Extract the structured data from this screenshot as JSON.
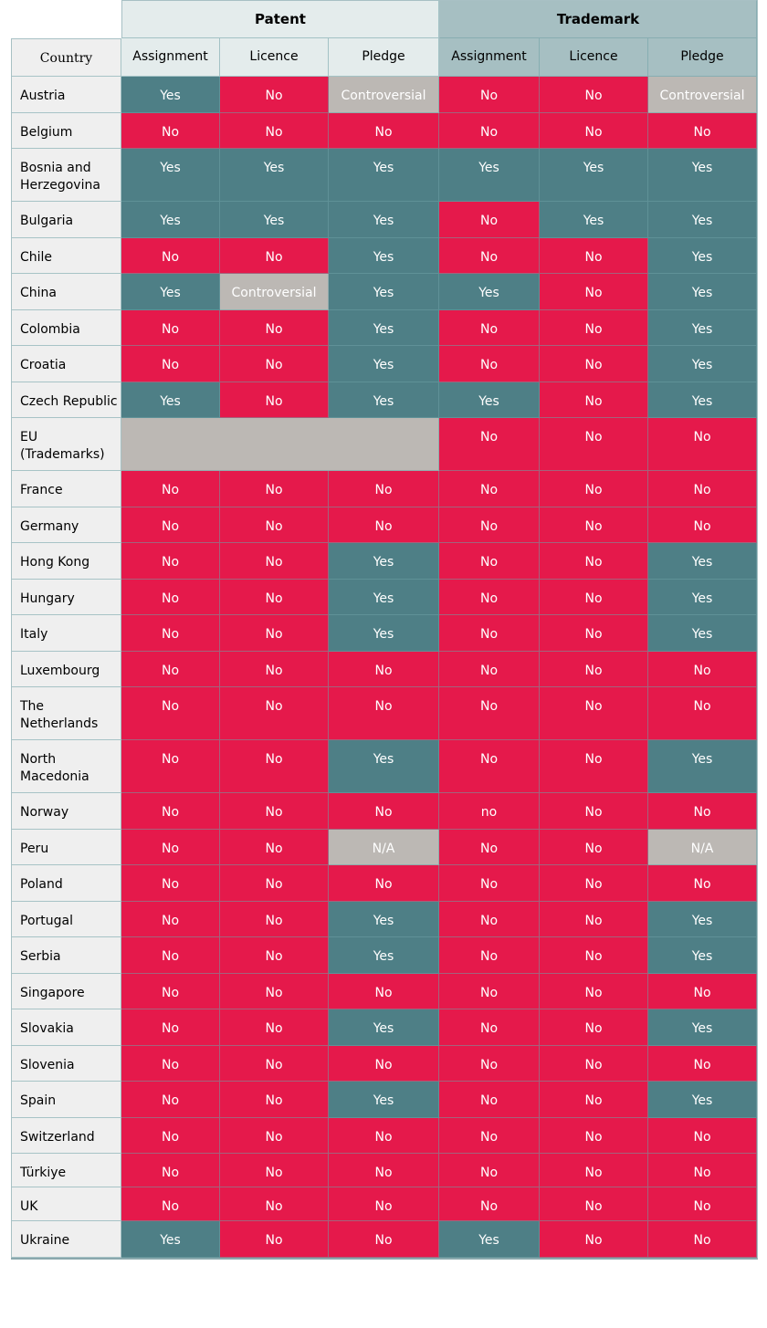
{
  "headers": {
    "patent": "Patent",
    "trademark": "Trademark",
    "country": "Country",
    "columns": [
      "Assignment",
      "Licence",
      "Pledge",
      "Assignment",
      "Licence",
      "Pledge"
    ]
  },
  "colors": {
    "yes": "#4e7f86",
    "no": "#e5194b",
    "grey": "#bcb8b4"
  },
  "rows": [
    {
      "country": "Austria",
      "values": [
        "Yes",
        "No",
        "Controversial",
        "No",
        "No",
        "Controversial"
      ]
    },
    {
      "country": "Belgium",
      "values": [
        "No",
        "No",
        "No",
        "No",
        "No",
        "No"
      ]
    },
    {
      "country": "Bosnia and Herzegovina",
      "values": [
        "Yes",
        "Yes",
        "Yes",
        "Yes",
        "Yes",
        "Yes"
      ]
    },
    {
      "country": "Bulgaria",
      "values": [
        "Yes",
        "Yes",
        "Yes",
        "No",
        "Yes",
        "Yes"
      ]
    },
    {
      "country": "Chile",
      "values": [
        "No",
        "No",
        "Yes",
        "No",
        "No",
        "Yes"
      ]
    },
    {
      "country": "China",
      "values": [
        "Yes",
        "Controversial",
        "Yes",
        "Yes",
        "No",
        "Yes"
      ]
    },
    {
      "country": "Colombia",
      "values": [
        "No",
        "No",
        "Yes",
        "No",
        "No",
        "Yes"
      ]
    },
    {
      "country": "Croatia",
      "values": [
        "No",
        "No",
        "Yes",
        "No",
        "No",
        "Yes"
      ]
    },
    {
      "country": "Czech Republic",
      "values": [
        "Yes",
        "No",
        "Yes",
        "Yes",
        "No",
        "Yes"
      ]
    },
    {
      "country": "EU (Trademarks)",
      "patent_na": true,
      "values": [
        "",
        "",
        "",
        "No",
        "No",
        "No"
      ]
    },
    {
      "country": "France",
      "values": [
        "No",
        "No",
        "No",
        "No",
        "No",
        "No"
      ]
    },
    {
      "country": "Germany",
      "values": [
        "No",
        "No",
        "No",
        "No",
        "No",
        "No"
      ]
    },
    {
      "country": "Hong Kong",
      "values": [
        "No",
        "No",
        "Yes",
        "No",
        "No",
        "Yes"
      ]
    },
    {
      "country": "Hungary",
      "values": [
        "No",
        "No",
        "Yes",
        "No",
        "No",
        "Yes"
      ]
    },
    {
      "country": "Italy",
      "values": [
        "No",
        "No",
        "Yes",
        "No",
        "No",
        "Yes"
      ]
    },
    {
      "country": "Luxembourg",
      "values": [
        "No",
        "No",
        "No",
        "No",
        "No",
        "No"
      ]
    },
    {
      "country": "The Netherlands",
      "values": [
        "No",
        "No",
        "No",
        "No",
        "No",
        "No"
      ]
    },
    {
      "country": "North Macedonia",
      "values": [
        "No",
        "No",
        "Yes",
        "No",
        "No",
        "Yes"
      ]
    },
    {
      "country": "Norway",
      "values": [
        "No",
        "No",
        "No",
        "no",
        "No",
        "No"
      ]
    },
    {
      "country": "Peru",
      "values": [
        "No",
        "No",
        "N/A",
        "No",
        "No",
        "N/A"
      ]
    },
    {
      "country": "Poland",
      "values": [
        "No",
        "No",
        "No",
        "No",
        "No",
        "No"
      ]
    },
    {
      "country": "Portugal",
      "values": [
        "No",
        "No",
        "Yes",
        "No",
        "No",
        "Yes"
      ]
    },
    {
      "country": "Serbia",
      "values": [
        "No",
        "No",
        "Yes",
        "No",
        "No",
        "Yes"
      ]
    },
    {
      "country": "Singapore",
      "values": [
        "No",
        "No",
        "No",
        "No",
        "No",
        "No"
      ]
    },
    {
      "country": "Slovakia",
      "values": [
        "No",
        "No",
        "Yes",
        "No",
        "No",
        "Yes"
      ]
    },
    {
      "country": "Slovenia",
      "values": [
        "No",
        "No",
        "No",
        "No",
        "No",
        "No"
      ]
    },
    {
      "country": "Spain",
      "values": [
        "No",
        "No",
        "Yes",
        "No",
        "No",
        "Yes"
      ]
    },
    {
      "country": "Switzerland",
      "values": [
        "No",
        "No",
        "No",
        "No",
        "No",
        "No"
      ]
    },
    {
      "country": "Türkiye",
      "values": [
        "No",
        "No",
        "No",
        "No",
        "No",
        "No"
      ]
    },
    {
      "country": "UK",
      "values": [
        "No",
        "No",
        "No",
        "No",
        "No",
        "No"
      ]
    },
    {
      "country": "Ukraine",
      "values": [
        "Yes",
        "No",
        "No",
        "Yes",
        "No",
        "No"
      ]
    }
  ]
}
